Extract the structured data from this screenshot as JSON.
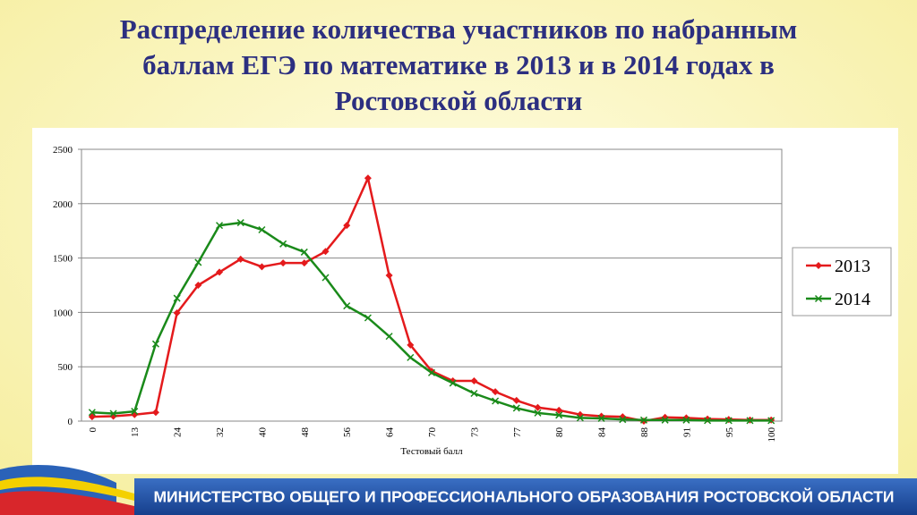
{
  "slide": {
    "title_lines": [
      "Распределение количества участников по набранным",
      "баллам ЕГЭ по математике в 2013 и в 2014 годах в",
      "Ростовской области"
    ],
    "footer": "МИНИСТЕРСТВО ОБЩЕГО И ПРОФЕССИОНАЛЬНОГО ОБРАЗОВАНИЯ РОСТОВСКОЙ ОБЛАСТИ"
  },
  "chart_data": {
    "type": "line",
    "x_label": "Тестовый балл",
    "categories": [
      "0",
      null,
      "13",
      null,
      "24",
      null,
      "32",
      null,
      "40",
      null,
      "48",
      null,
      "56",
      null,
      "64",
      null,
      "70",
      null,
      "73",
      null,
      "77",
      null,
      "80",
      null,
      "84",
      null,
      "88",
      null,
      "91",
      null,
      "95",
      null,
      "100"
    ],
    "series": [
      {
        "name": "2013",
        "color": "#e41a1c",
        "marker": "diamond",
        "values": [
          40,
          45,
          60,
          80,
          995,
          1250,
          1370,
          1490,
          1420,
          1455,
          1455,
          1560,
          1800,
          2235,
          1340,
          700,
          460,
          370,
          370,
          270,
          190,
          125,
          100,
          60,
          45,
          40,
          0,
          35,
          30,
          20,
          15,
          10,
          10
        ]
      },
      {
        "name": "2014",
        "color": "#1a8a1a",
        "marker": "x",
        "values": [
          80,
          70,
          90,
          710,
          1130,
          1460,
          1800,
          1825,
          1760,
          1630,
          1555,
          1320,
          1060,
          950,
          780,
          585,
          445,
          350,
          255,
          185,
          120,
          75,
          55,
          30,
          25,
          15,
          10,
          10,
          10,
          5,
          5,
          5,
          5
        ]
      }
    ],
    "ylim": [
      0,
      2500
    ],
    "yticks": [
      0,
      500,
      1000,
      1500,
      2000,
      2500
    ],
    "grid": true,
    "legend": "right"
  }
}
